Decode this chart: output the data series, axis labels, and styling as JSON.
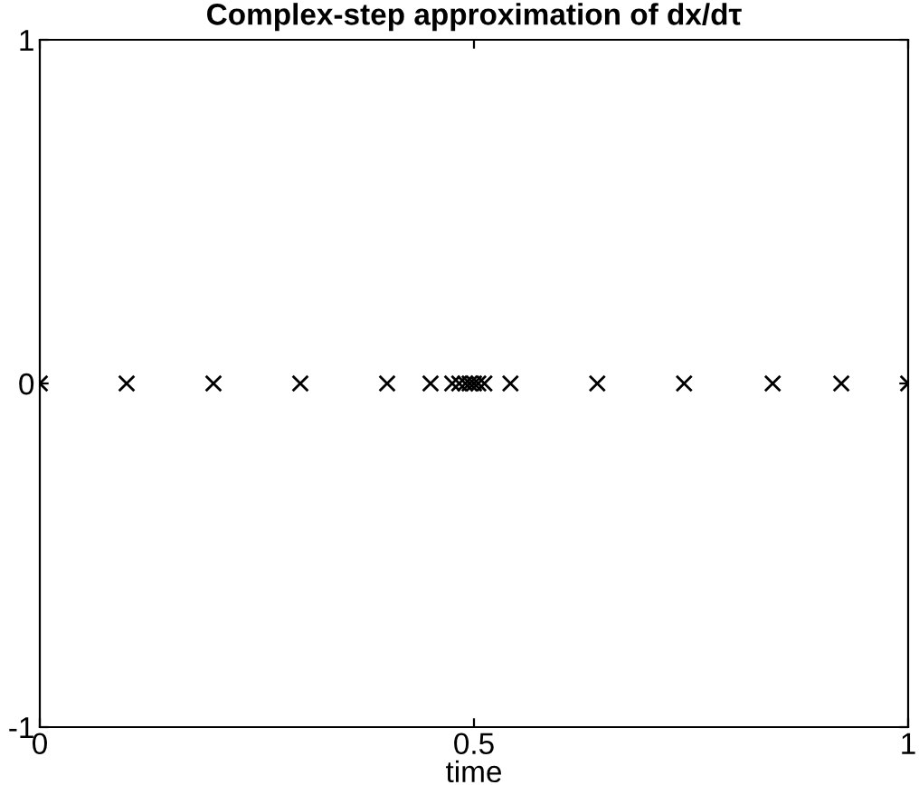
{
  "chart_data": {
    "type": "scatter",
    "title": "Complex-step approximation of dx/dτ",
    "xlabel": "time",
    "x": [
      0,
      0.1,
      0.2,
      0.3,
      0.4,
      0.45,
      0.475,
      0.483,
      0.49,
      0.495,
      0.5,
      0.505,
      0.512,
      0.542,
      0.642,
      0.742,
      0.844,
      0.923,
      1
    ],
    "series": [
      {
        "color": "#000000",
        "values": [
          0,
          0,
          0,
          0,
          0,
          0,
          0,
          0,
          0,
          0,
          0,
          0,
          0,
          0,
          0,
          0,
          0,
          0,
          0
        ]
      }
    ],
    "marker": "cross",
    "xlim": [
      0,
      1
    ],
    "ylim": [
      -1,
      1
    ],
    "xticks": [
      0,
      0.5,
      1
    ],
    "yticks": [
      -1,
      0,
      1
    ],
    "grid": false,
    "legend": false
  }
}
